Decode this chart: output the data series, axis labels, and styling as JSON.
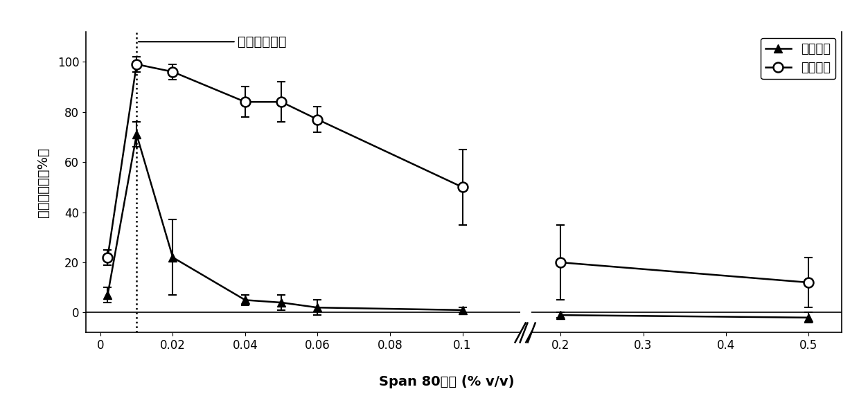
{
  "title": "",
  "xlabel": "Span 80浓度 (% v/v)",
  "ylabel": "液滴融合率（%）",
  "annotation": "临界胶束浓度",
  "dashed_vline_x": 0.01,
  "series1_label": "离心之前",
  "series1_x": [
    0.002,
    0.01,
    0.02,
    0.04,
    0.05,
    0.06,
    0.1,
    0.2,
    0.5
  ],
  "series1_y": [
    7,
    71,
    22,
    5,
    4,
    2,
    1,
    -1,
    -2
  ],
  "series1_yerr": [
    3,
    5,
    15,
    2,
    3,
    3,
    1,
    1,
    2
  ],
  "series2_label": "离心之后",
  "series2_x": [
    0.002,
    0.01,
    0.02,
    0.04,
    0.05,
    0.06,
    0.1,
    0.2,
    0.5
  ],
  "series2_y": [
    22,
    99,
    96,
    84,
    84,
    77,
    50,
    20,
    12
  ],
  "series2_yerr": [
    3,
    3,
    3,
    6,
    8,
    5,
    15,
    15,
    10
  ],
  "ylim": [
    -8,
    112
  ],
  "yticks": [
    0,
    20,
    40,
    60,
    80,
    100
  ],
  "left_xticks": [
    0,
    0.02,
    0.04,
    0.06,
    0.08,
    0.1
  ],
  "left_xticklabels": [
    "0",
    "0.02",
    "0.04",
    "0.06",
    "0.08",
    "0.1"
  ],
  "right_xticks": [
    0.2,
    0.3,
    0.4,
    0.5
  ],
  "right_xticklabels": [
    "0.2",
    "0.3",
    "0.4",
    "0.5"
  ],
  "background_color": "#ffffff",
  "line_color": "#000000",
  "marker1": "^",
  "marker2": "o",
  "markersize1": 9,
  "markersize2": 10,
  "linewidth": 1.8,
  "fontsize_label": 14,
  "fontsize_tick": 12,
  "fontsize_legend": 13,
  "fontsize_annotation": 14
}
